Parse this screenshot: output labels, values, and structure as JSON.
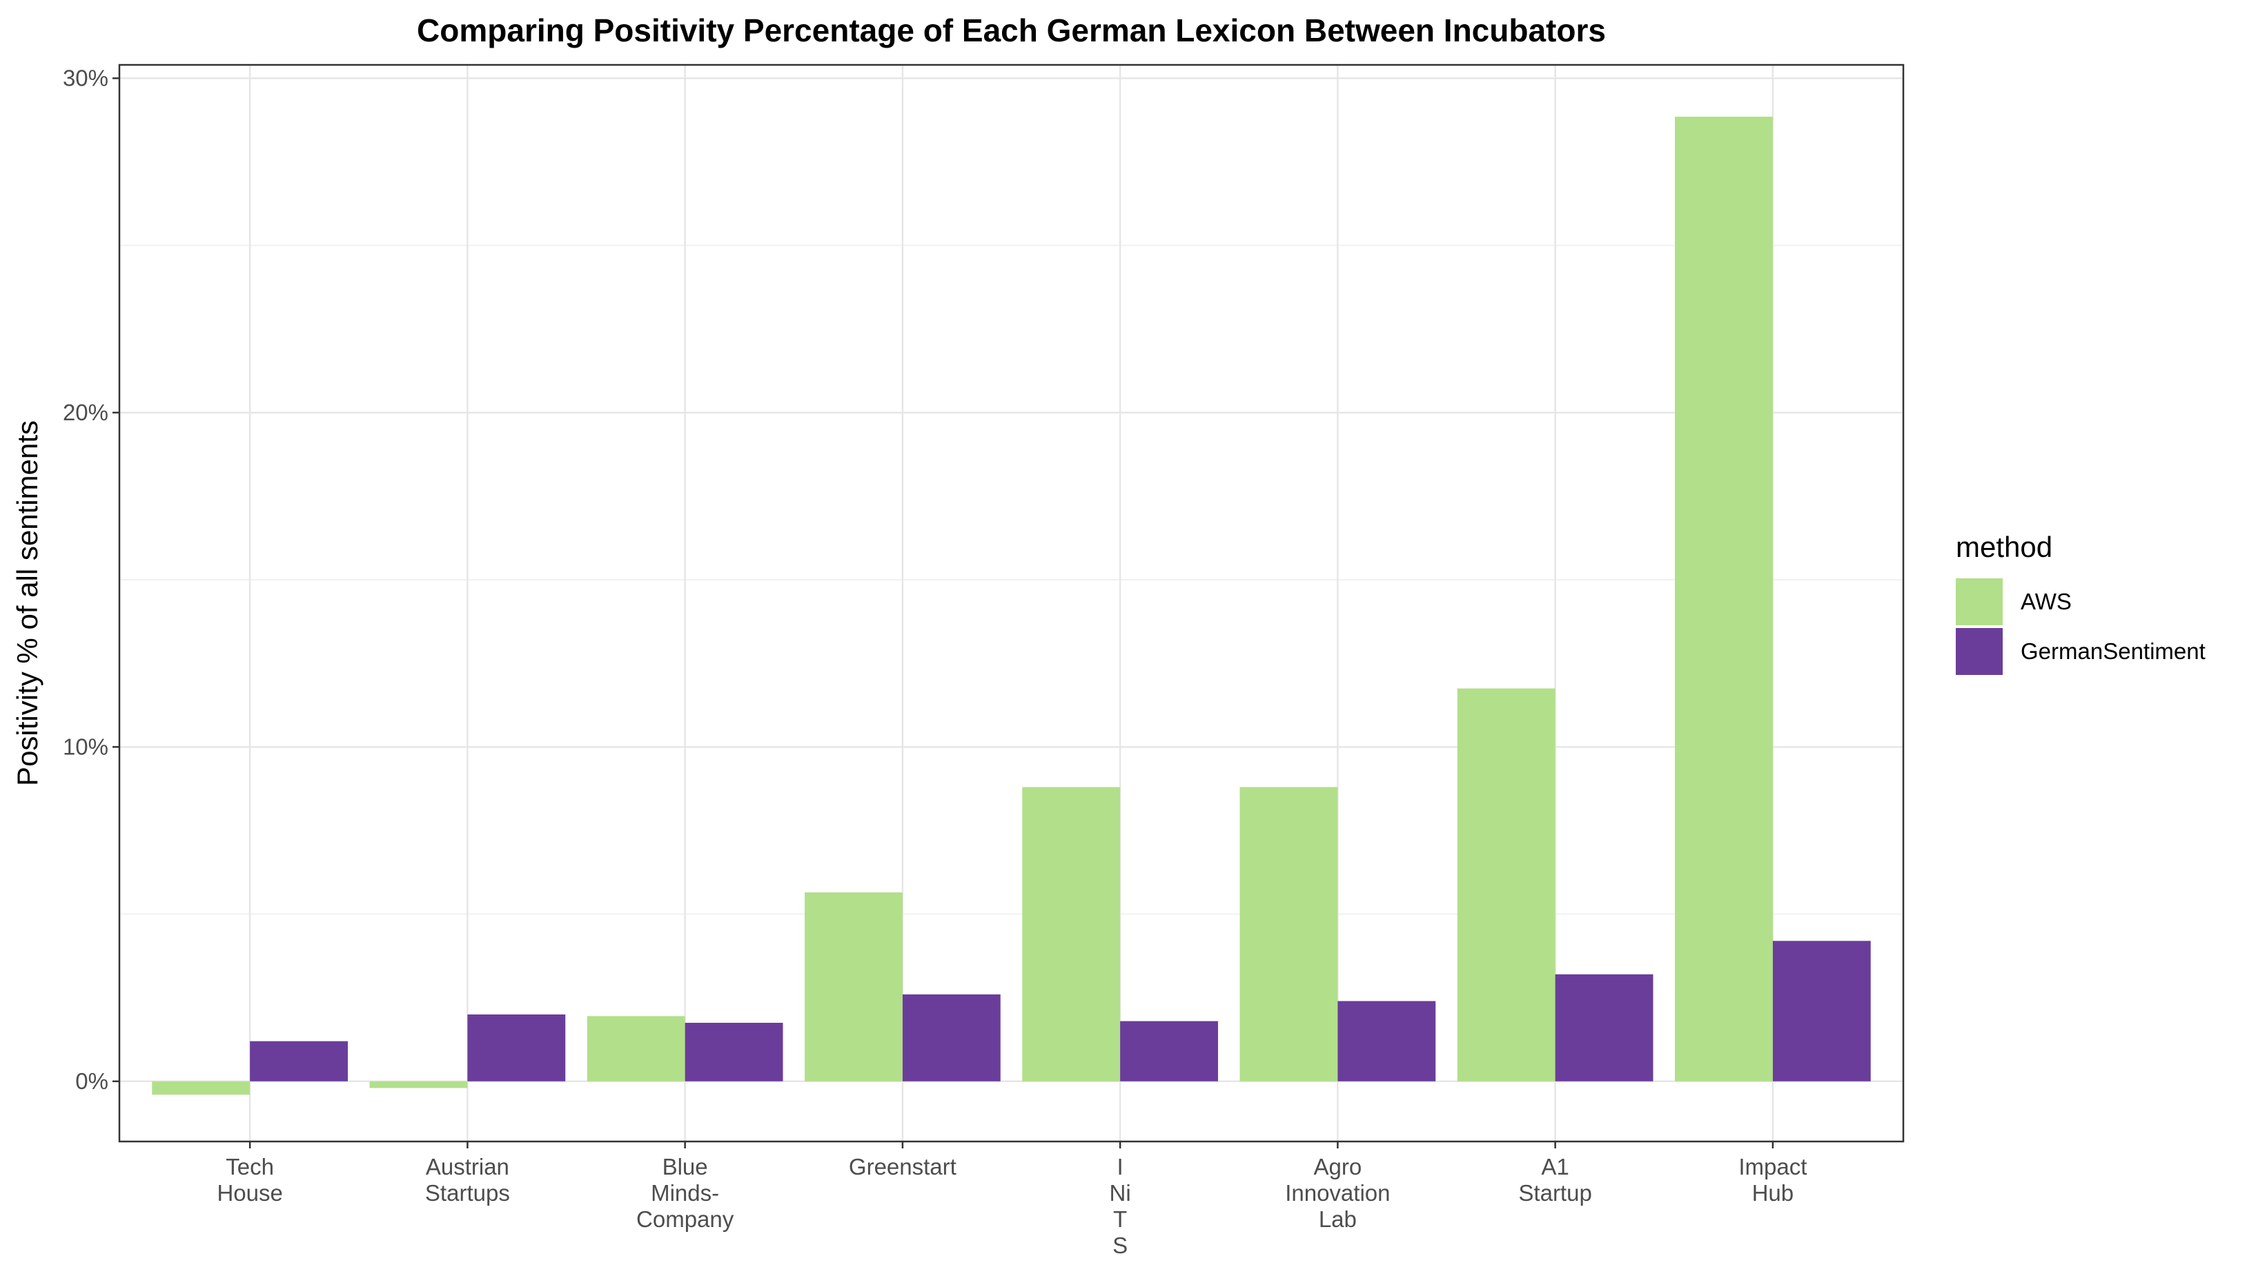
{
  "chart_data": {
    "type": "bar",
    "title": "Comparing Positivity Percentage of Each German Lexicon Between Incubators",
    "xlabel": "",
    "ylabel": "Positivity % of all sentiments",
    "categories": [
      [
        "Tech",
        "House"
      ],
      [
        "Austrian",
        "Startups"
      ],
      [
        "Blue",
        "Minds-",
        "Company"
      ],
      [
        "Greenstart"
      ],
      [
        "I",
        "Ni",
        "T",
        "S"
      ],
      [
        "Agro",
        "Innovation",
        "Lab"
      ],
      [
        "A1",
        "Startup"
      ],
      [
        "Impact",
        "Hub"
      ]
    ],
    "series": [
      {
        "name": "AWS",
        "color": "#b2df8a",
        "values": [
          -0.4,
          -0.2,
          1.95,
          5.65,
          8.8,
          8.8,
          11.75,
          28.85
        ]
      },
      {
        "name": "GermanSentiment",
        "color": "#6a3d9a",
        "values": [
          1.2,
          2.0,
          1.75,
          2.6,
          1.8,
          2.4,
          3.2,
          4.2
        ]
      }
    ],
    "ylim": [
      -1.8,
      30.4
    ],
    "yticks": [
      0,
      10,
      20,
      30
    ],
    "ytick_labels": [
      "0%",
      "10%",
      "20%",
      "30%"
    ],
    "grid": true,
    "legend": {
      "title": "method",
      "position": "right"
    }
  }
}
